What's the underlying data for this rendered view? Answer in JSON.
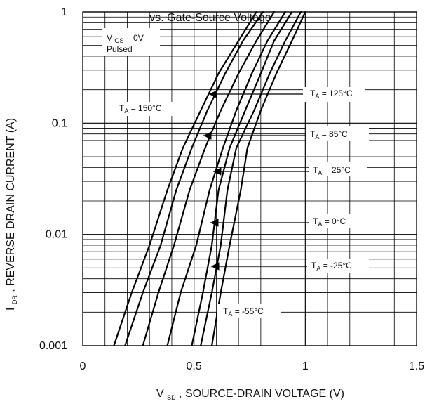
{
  "chart_data": {
    "type": "line",
    "title": "vs. Gate-Source Voltage",
    "xlabel": {
      "main": "V",
      "sub": "SD",
      "rest": ", SOURCE-DRAIN VOLTAGE (V)"
    },
    "ylabel": {
      "main": "I",
      "sub": "DR",
      "rest": ", REVERSE DRAIN CURRENT (A)"
    },
    "x_ticks": [
      0,
      0.5,
      1,
      1.5
    ],
    "x_tick_labels": [
      "0",
      "0.5",
      "1",
      "1.5"
    ],
    "y_ticks": [
      0.001,
      0.01,
      0.1,
      1
    ],
    "y_tick_labels": [
      "0.001",
      "0.01",
      "0.1",
      "1"
    ],
    "xlim": [
      0,
      1.5
    ],
    "ylim": [
      0.001,
      1
    ],
    "y_scale": "log",
    "grid": true,
    "annotations": {
      "vgs": {
        "main": "V",
        "sub": "GS",
        "rest": " = 0V"
      },
      "pulsed": "Pulsed"
    },
    "series": [
      {
        "label_main": "T",
        "label_sub": "A",
        "label_rest": " = 150°C",
        "x": [
          0.14,
          0.22,
          0.3,
          0.38,
          0.45,
          0.53,
          0.61,
          0.7,
          0.78
        ],
        "y": [
          0.001,
          0.003,
          0.008,
          0.025,
          0.06,
          0.13,
          0.28,
          0.55,
          1
        ]
      },
      {
        "label_main": "T",
        "label_sub": "A",
        "label_rest": " = 125°C",
        "x": [
          0.19,
          0.27,
          0.35,
          0.42,
          0.49,
          0.56,
          0.64,
          0.72,
          0.81
        ],
        "y": [
          0.001,
          0.003,
          0.008,
          0.025,
          0.06,
          0.13,
          0.28,
          0.55,
          1
        ]
      },
      {
        "label_main": "T",
        "label_sub": "A",
        "label_rest": " = 85°C",
        "x": [
          0.27,
          0.34,
          0.41,
          0.48,
          0.55,
          0.62,
          0.7,
          0.78,
          0.86
        ],
        "y": [
          0.001,
          0.003,
          0.008,
          0.025,
          0.06,
          0.13,
          0.28,
          0.55,
          1
        ]
      },
      {
        "label_main": "T",
        "label_sub": "A",
        "label_rest": " = 25°C",
        "x": [
          0.38,
          0.44,
          0.51,
          0.57,
          0.63,
          0.69,
          0.76,
          0.83,
          0.91
        ],
        "y": [
          0.001,
          0.003,
          0.008,
          0.025,
          0.06,
          0.13,
          0.28,
          0.55,
          1
        ]
      },
      {
        "label_main": "T",
        "label_sub": "A",
        "label_rest": " = 0°C",
        "x": [
          0.49,
          0.54,
          0.58,
          0.61,
          0.66,
          0.73,
          0.8,
          0.86,
          0.94
        ],
        "y": [
          0.001,
          0.003,
          0.008,
          0.025,
          0.06,
          0.13,
          0.28,
          0.55,
          1
        ]
      },
      {
        "label_main": "T",
        "label_sub": "A",
        "label_rest": " = -25°C",
        "x": [
          0.53,
          0.58,
          0.62,
          0.65,
          0.69,
          0.77,
          0.84,
          0.91,
          0.98
        ],
        "y": [
          0.001,
          0.003,
          0.008,
          0.025,
          0.06,
          0.13,
          0.28,
          0.55,
          1
        ]
      },
      {
        "label_main": "T",
        "label_sub": "A",
        "label_rest": " = -55°C",
        "x": [
          0.58,
          0.62,
          0.66,
          0.71,
          0.74,
          0.8,
          0.87,
          0.94,
          1.0
        ],
        "y": [
          0.001,
          0.003,
          0.008,
          0.025,
          0.06,
          0.13,
          0.28,
          0.55,
          1
        ]
      }
    ]
  }
}
